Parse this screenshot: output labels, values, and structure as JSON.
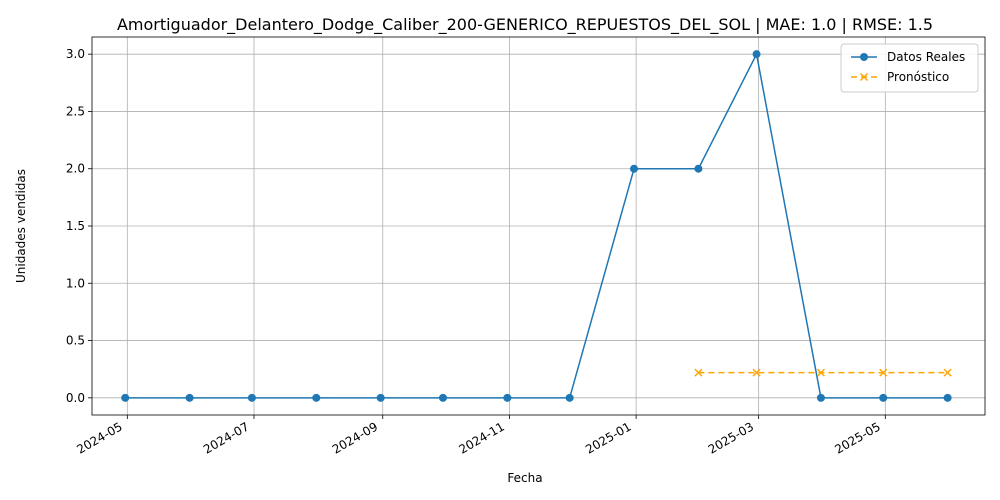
{
  "chart_data": {
    "type": "line",
    "title": "Amortiguador_Delantero_Dodge_Caliber_200-GENERICO_REPUESTOS_DEL_SOL | MAE: 1.0 | RMSE: 1.5",
    "xlabel": "Fecha",
    "ylabel": "Unidades vendidas",
    "x_ticks": [
      "2024-05",
      "2024-07",
      "2024-09",
      "2024-11",
      "2025-01",
      "2025-03",
      "2025-05"
    ],
    "y_ticks": [
      "0.0",
      "0.5",
      "1.0",
      "1.5",
      "2.0",
      "2.5",
      "3.0"
    ],
    "ylim": [
      -0.15,
      3.15
    ],
    "xlim": [
      "2024-04-14",
      "2025-06-18"
    ],
    "grid": true,
    "legend_position": "top-right",
    "series": [
      {
        "name": "Datos Reales",
        "color": "#1f77b4",
        "style": "solid",
        "marker": "circle",
        "x": [
          "2024-04-30",
          "2024-05-31",
          "2024-06-30",
          "2024-07-31",
          "2024-08-31",
          "2024-09-30",
          "2024-10-31",
          "2024-11-30",
          "2024-12-31",
          "2025-01-31",
          "2025-02-28",
          "2025-03-31",
          "2025-04-30",
          "2025-05-31"
        ],
        "values": [
          0,
          0,
          0,
          0,
          0,
          0,
          0,
          0,
          2,
          2,
          3,
          0,
          0,
          0
        ]
      },
      {
        "name": "Pronóstico",
        "color": "#ffa500",
        "style": "dashed",
        "marker": "x",
        "x": [
          "2025-01-31",
          "2025-02-28",
          "2025-03-31",
          "2025-04-30",
          "2025-05-31"
        ],
        "values": [
          0.22,
          0.22,
          0.22,
          0.22,
          0.22
        ]
      }
    ]
  }
}
